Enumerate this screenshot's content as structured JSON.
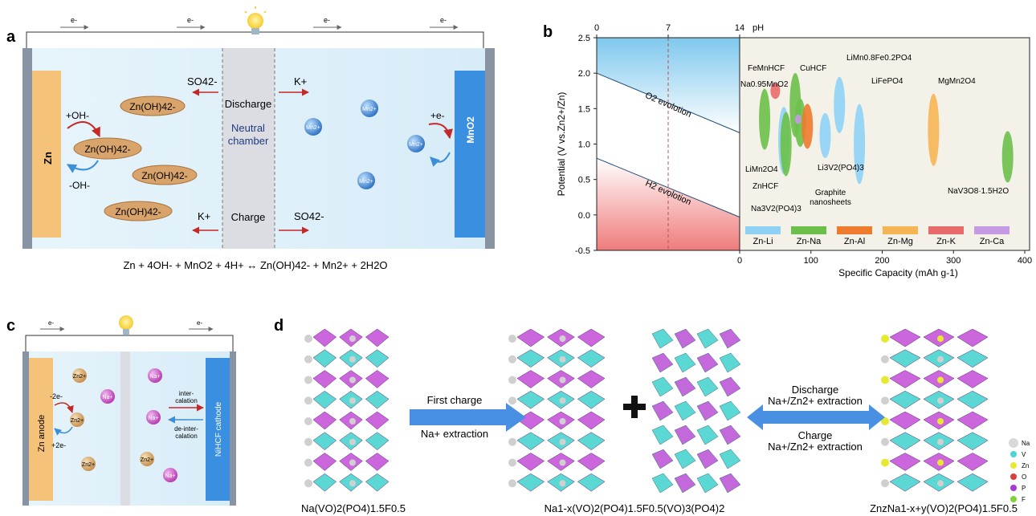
{
  "panel_letters": {
    "a": "a",
    "b": "b",
    "c": "c",
    "d": "d"
  },
  "panel_a": {
    "electron": "e-",
    "anode": "Zn",
    "cathode": "MnO2",
    "chamber_line1": "Neutral",
    "chamber_line2": "chamber",
    "discharge": "Discharge",
    "charge": "Charge",
    "plus_oh": "+OH-",
    "minus_oh": "-OH-",
    "plus_e": "+e-",
    "zincate": "Zn(OH)42-",
    "sulfate": "SO42-",
    "potassium": "K+",
    "mn_ion": "Mn2+",
    "equation": "Zn + 4OH- + MnO2 + 4H+ ↔ Zn(OH)42- + Mn2+ + 2H2O"
  },
  "panel_b": {
    "chart_data": {
      "type": "scatter",
      "xlabel": "Specific Capacity (mAh g-1)",
      "ylabel": "Potential (V vs.Zn2+/Zn)",
      "top_axis_label": "pH",
      "xlim": [
        0,
        400
      ],
      "ylim": [
        -0.5,
        2.5
      ],
      "x_ticks": [
        0,
        100,
        200,
        300,
        400
      ],
      "y_ticks": [
        "-0.5",
        "0.0",
        "0.5",
        "1.0",
        "1.5",
        "2.0",
        "2.5"
      ],
      "ph_ticks": [
        "0",
        "7",
        "14"
      ],
      "o2_label": "O2 evolotion",
      "h2_label": "H2 evolotion",
      "legend": [
        "Zn-Li",
        "Zn-Na",
        "Zn-Al",
        "Zn-Mg",
        "Zn-K",
        "Zn-Ca"
      ],
      "colors": {
        "Zn-Li": "#8fd1f5",
        "Zn-Na": "#6cc04a",
        "Zn-Al": "#ee7b2e",
        "Zn-Mg": "#f6b554",
        "Zn-K": "#e86a6a",
        "Zn-Ca": "#c79ae6"
      },
      "materials": [
        {
          "name": "FeMnHCF",
          "system": "Zn-Na",
          "x": 78,
          "y": 1.55
        },
        {
          "name": "Na0.95MnO2",
          "system": "Zn-Na",
          "x": 35,
          "y": 1.35
        },
        {
          "name": "CuHCF",
          "system": "Zn-Na",
          "x": 85,
          "y": 1.3
        },
        {
          "name": "LiMn0.8Fe0.2PO4",
          "system": "Zn-Li",
          "x": 140,
          "y": 1.55
        },
        {
          "name": "LiFePO4",
          "system": "Zn-Li",
          "x": 168,
          "y": 1.0
        },
        {
          "name": "MgMn2O4",
          "system": "Zn-Mg",
          "x": 272,
          "y": 1.2
        },
        {
          "name": "LiMn2O4",
          "system": "Zn-Li",
          "x": 62,
          "y": 1.05
        },
        {
          "name": "ZnHCF",
          "system": "Zn-Na",
          "x": 65,
          "y": 1.0
        },
        {
          "name": "Li3V2(PO4)3",
          "system": "Zn-Li",
          "x": 120,
          "y": 1.12
        },
        {
          "name": "Graphite nanosheets",
          "system": "Zn-Al",
          "x": 95,
          "y": 1.25
        },
        {
          "name": "Na3V2(PO4)3",
          "system": "Zn-Ca",
          "x": 82,
          "y": 1.35
        },
        {
          "name": "NaV3O8·1.5H2O",
          "system": "Zn-Na",
          "x": 376,
          "y": 0.82
        },
        {
          "name": "",
          "system": "Zn-K",
          "x": 50,
          "y": 1.75
        }
      ]
    }
  },
  "panel_c": {
    "electron": "e-",
    "anode": "Zn anode",
    "cathode": "NiHCF cathode",
    "minus_2e": "-2e-",
    "plus_2e": "+2e-",
    "zn_ion": "Zn2+",
    "na_ion": "Na+",
    "intercalation_1": "inter-",
    "intercalation_2": "calation",
    "deintercalation_1": "de-inter-",
    "deintercalation_2": "calation"
  },
  "panel_d": {
    "first_charge": "First charge",
    "na_extraction": "Na+ extraction",
    "discharge": "Discharge",
    "discharge_sub": "Na+/Zn2+ extraction",
    "charge": "Charge",
    "charge_sub": "Na+/Zn2+ extraction",
    "plus": "+",
    "formula_1": "Na(VO)2(PO4)1.5F0.5",
    "formula_2": "Na1-x(VO)2(PO4)1.5F0.5(VO)3(PO4)2",
    "formula_3": "ZnzNa1-x+y(VO)2(PO4)1.5F0.5",
    "legend": [
      {
        "label": "Na",
        "color": "#d9d9d9"
      },
      {
        "label": "V",
        "color": "#4fd3d6"
      },
      {
        "label": "Zn",
        "color": "#e8e830"
      },
      {
        "label": "O",
        "color": "#d84040"
      },
      {
        "label": "P",
        "color": "#a23bd1"
      },
      {
        "label": "F",
        "color": "#7fd23b"
      }
    ]
  }
}
